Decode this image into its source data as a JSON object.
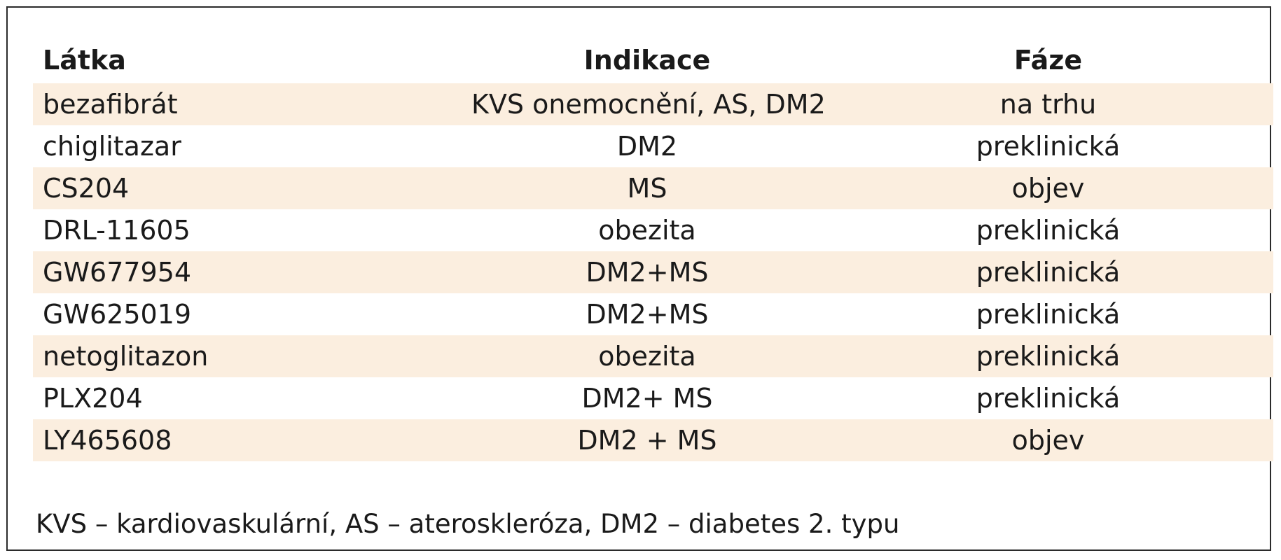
{
  "table": {
    "headers": {
      "latka": "Látka",
      "indikace": "Indikace",
      "faze": "Fáze"
    },
    "rows": [
      {
        "latka": "bezafibrát",
        "indikace": "KVS onemocnění, AS, DM2",
        "faze": "na trhu"
      },
      {
        "latka": "chiglitazar",
        "indikace": "DM2",
        "faze": "preklinická"
      },
      {
        "latka": "CS204",
        "indikace": "MS",
        "faze": "objev"
      },
      {
        "latka": "DRL-11605",
        "indikace": "obezita",
        "faze": "preklinická"
      },
      {
        "latka": "GW677954",
        "indikace": "DM2+MS",
        "faze": "preklinická"
      },
      {
        "latka": "GW625019",
        "indikace": "DM2+MS",
        "faze": "preklinická"
      },
      {
        "latka": "netoglitazon",
        "indikace": "obezita",
        "faze": "preklinická"
      },
      {
        "latka": "PLX204",
        "indikace": "DM2+ MS",
        "faze": "preklinická"
      },
      {
        "latka": "LY465608",
        "indikace": "DM2 + MS",
        "faze": "objev"
      }
    ],
    "footnote": "KVS – kardiovaskulární, AS – ateroskleróza, DM2 – diabetes 2. typu"
  },
  "colors": {
    "shaded_row": "#fbeedf",
    "border": "#2b2b2b",
    "text": "#1a1a1a"
  }
}
